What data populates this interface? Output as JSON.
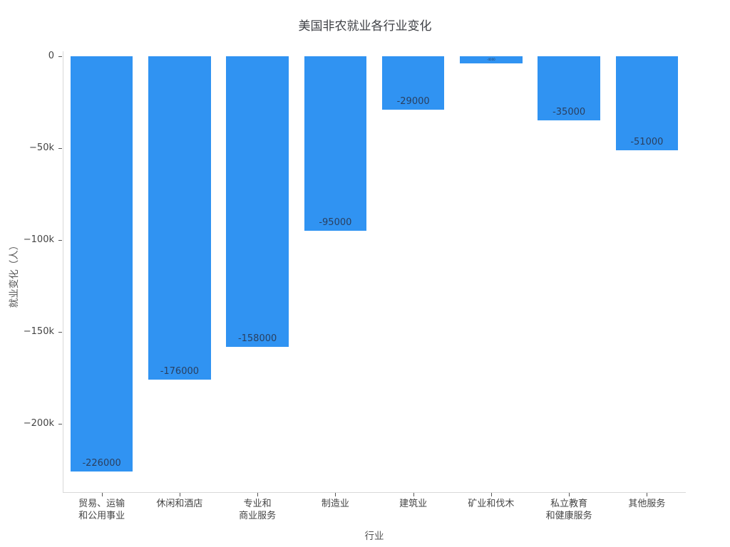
{
  "chart_data": {
    "type": "bar",
    "title": "美国非农就业各行业变化",
    "xlabel": "行业",
    "ylabel": "就业变化（人）",
    "categories": [
      "贸易、运输\n和公用事业",
      "休闲和酒店",
      "专业和\n商业服务",
      "制造业",
      "建筑业",
      "矿业和伐木",
      "私立教育\n和健康服务",
      "其他服务"
    ],
    "values": [
      -226000,
      -176000,
      -158000,
      -95000,
      -29000,
      -4000,
      -35000,
      -51000
    ],
    "bar_labels": [
      "-226000",
      "-176000",
      "-158000",
      "-95000",
      "-29000",
      "-4000",
      "-35000",
      "-51000"
    ],
    "yticks": [
      {
        "label": "0",
        "value": 0
      },
      {
        "label": "−50k",
        "value": -50000
      },
      {
        "label": "−100k",
        "value": -100000
      },
      {
        "label": "−150k",
        "value": -150000
      },
      {
        "label": "−200k",
        "value": -200000
      }
    ],
    "ylim": [
      -237000,
      2700
    ],
    "grid": false,
    "legend": false,
    "colors": {
      "bar": "#3093f2",
      "bar_label": "#2a3f5f",
      "axis_line": "#d9d9d9",
      "tick_mark": "#555555",
      "tick_text": "#444444",
      "title_text": "#3d3f44",
      "background": "#ffffff"
    }
  }
}
